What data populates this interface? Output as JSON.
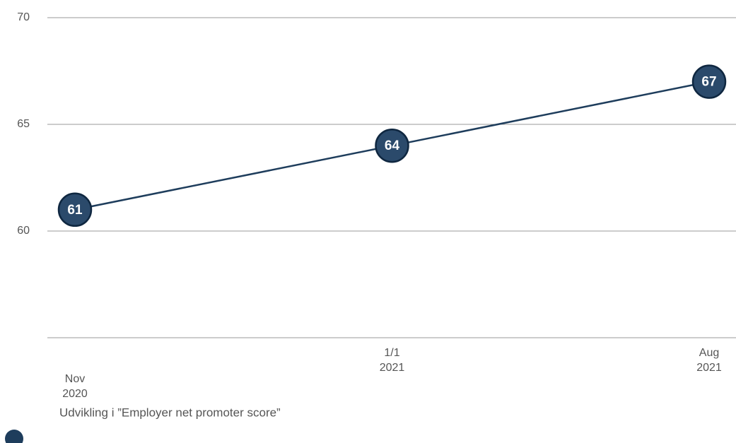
{
  "chart_data": {
    "type": "line",
    "categories": [
      "Nov 2020",
      "1/1 2021",
      "Aug 2021"
    ],
    "series": [
      {
        "name": "Udvikling i ”Employer net promoter score”",
        "color": "#1e3d5c",
        "values": [
          61,
          64,
          67
        ]
      }
    ],
    "ylim": [
      55,
      70
    ],
    "yticks": [
      60,
      65,
      70
    ],
    "grid": true
  }
}
